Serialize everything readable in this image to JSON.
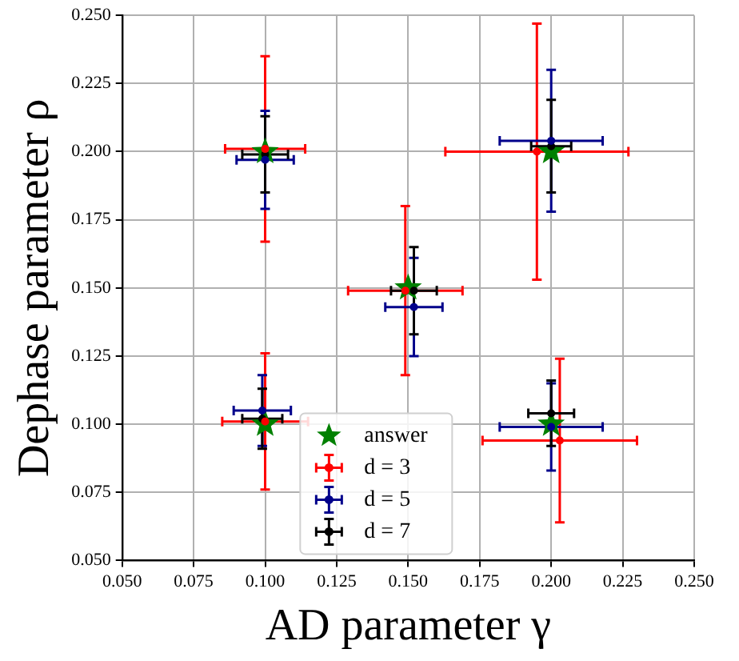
{
  "chart_data": {
    "type": "scatter",
    "xlabel": "AD parameter γ",
    "ylabel": "Dephase parameter ρ",
    "xlim": [
      0.05,
      0.25
    ],
    "ylim": [
      0.05,
      0.25
    ],
    "xticks": [
      {
        "value": 0.05,
        "label": "0.050"
      },
      {
        "value": 0.075,
        "label": "0.075"
      },
      {
        "value": 0.1,
        "label": "0.100"
      },
      {
        "value": 0.125,
        "label": "0.125"
      },
      {
        "value": 0.15,
        "label": "0.150"
      },
      {
        "value": 0.175,
        "label": "0.175"
      },
      {
        "value": 0.2,
        "label": "0.200"
      },
      {
        "value": 0.225,
        "label": "0.225"
      },
      {
        "value": 0.25,
        "label": "0.250"
      }
    ],
    "yticks": [
      {
        "value": 0.05,
        "label": "0.050"
      },
      {
        "value": 0.075,
        "label": "0.075"
      },
      {
        "value": 0.1,
        "label": "0.100"
      },
      {
        "value": 0.125,
        "label": "0.125"
      },
      {
        "value": 0.15,
        "label": "0.150"
      },
      {
        "value": 0.175,
        "label": "0.175"
      },
      {
        "value": 0.2,
        "label": "0.200"
      },
      {
        "value": 0.225,
        "label": "0.225"
      },
      {
        "value": 0.25,
        "label": "0.250"
      }
    ],
    "grid": true,
    "legend": "bottom",
    "series": [
      {
        "name": "answer",
        "color": "#008000",
        "marker": "star",
        "x": [
          0.1,
          0.1,
          0.15,
          0.2,
          0.2
        ],
        "values": [
          0.2,
          0.1,
          0.15,
          0.2,
          0.1
        ]
      },
      {
        "name": "d = 3",
        "color": "#ff0000",
        "x": [
          0.1,
          0.1,
          0.149,
          0.195,
          0.203
        ],
        "values": [
          0.201,
          0.101,
          0.149,
          0.2,
          0.094
        ],
        "errors": [
          0.034,
          0.025,
          0.031,
          0.047,
          0.03
        ],
        "xerrors": [
          0.014,
          0.015,
          0.02,
          0.032,
          0.027
        ]
      },
      {
        "name": "d = 5",
        "color": "#00008b",
        "x": [
          0.1,
          0.099,
          0.152,
          0.2,
          0.2
        ],
        "values": [
          0.197,
          0.105,
          0.143,
          0.204,
          0.099
        ],
        "errors": [
          0.018,
          0.013,
          0.018,
          0.026,
          0.016
        ],
        "xerrors": [
          0.01,
          0.01,
          0.01,
          0.018,
          0.018
        ]
      },
      {
        "name": "d = 7",
        "color": "#000000",
        "x": [
          0.1,
          0.099,
          0.152,
          0.2,
          0.2
        ],
        "values": [
          0.199,
          0.102,
          0.149,
          0.202,
          0.104
        ],
        "errors": [
          0.014,
          0.011,
          0.016,
          0.017,
          0.012
        ],
        "xerrors": [
          0.008,
          0.007,
          0.008,
          0.007,
          0.008
        ]
      }
    ]
  }
}
